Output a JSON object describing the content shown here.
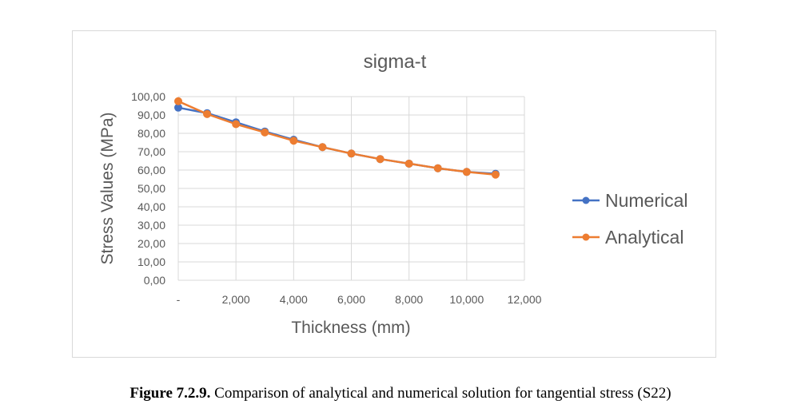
{
  "caption": {
    "label": "Figure 7.2.9.",
    "text": " Comparison of analytical and numerical solution for tangential stress (S22)"
  },
  "chart_data": {
    "type": "line",
    "title": "sigma-t",
    "xlabel": "Thickness (mm)",
    "ylabel": "Stress Values (MPa)",
    "xlim": [
      0,
      12000
    ],
    "ylim": [
      0,
      100
    ],
    "x_ticks": [
      0,
      2000,
      4000,
      6000,
      8000,
      10000,
      12000
    ],
    "x_tick_labels": [
      "-",
      "2,000",
      "4,000",
      "6,000",
      "8,000",
      "10,000",
      "12,000"
    ],
    "y_ticks": [
      0,
      10,
      20,
      30,
      40,
      50,
      60,
      70,
      80,
      90,
      100
    ],
    "y_tick_labels": [
      "0,00",
      "10,00",
      "20,00",
      "30,00",
      "40,00",
      "50,00",
      "60,00",
      "70,00",
      "80,00",
      "90,00",
      "100,00"
    ],
    "grid": true,
    "legend_position": "right",
    "x": [
      0,
      1000,
      2000,
      3000,
      4000,
      5000,
      6000,
      7000,
      8000,
      9000,
      10000,
      11000
    ],
    "series": [
      {
        "name": "Numerical",
        "color": "#4472c4",
        "values": [
          94.0,
          91.0,
          86.0,
          81.0,
          76.5,
          72.5,
          69.0,
          66.0,
          63.5,
          61.0,
          59.0,
          58.0
        ]
      },
      {
        "name": "Analytical",
        "color": "#ed7d31",
        "values": [
          97.5,
          90.5,
          85.0,
          80.5,
          76.0,
          72.5,
          69.0,
          66.0,
          63.5,
          61.0,
          59.0,
          57.5
        ]
      }
    ]
  }
}
